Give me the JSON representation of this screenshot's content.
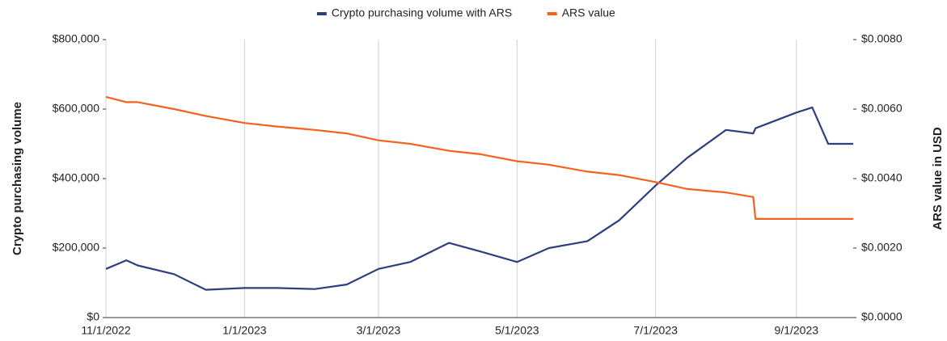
{
  "chart_data": {
    "type": "line",
    "x": [
      "11/1/2022",
      "11/10/2022",
      "11/15/2022",
      "12/1/2022",
      "12/15/2022",
      "1/1/2023",
      "1/15/2023",
      "2/1/2023",
      "2/15/2023",
      "3/1/2023",
      "3/15/2023",
      "4/1/2023",
      "4/15/2023",
      "5/1/2023",
      "5/15/2023",
      "6/1/2023",
      "6/15/2023",
      "7/1/2023",
      "7/15/2023",
      "8/1/2023",
      "8/13/2023",
      "8/14/2023",
      "9/1/2023",
      "9/8/2023",
      "9/15/2023",
      "9/26/2023"
    ],
    "series": [
      {
        "name": "Crypto purchasing volume with ARS",
        "color": "#2e3f7f",
        "values": [
          140000,
          165000,
          150000,
          125000,
          80000,
          85000,
          85000,
          82000,
          95000,
          140000,
          160000,
          215000,
          190000,
          160000,
          200000,
          220000,
          280000,
          380000,
          460000,
          540000,
          530000,
          545000,
          590000,
          605000,
          500000,
          500000
        ]
      },
      {
        "name": "ARS value",
        "color": "#f5621e",
        "axis": "y2",
        "values": [
          0.00635,
          0.0062,
          0.0062,
          0.006,
          0.0058,
          0.0056,
          0.0055,
          0.0054,
          0.0053,
          0.0051,
          0.005,
          0.0048,
          0.0047,
          0.0045,
          0.0044,
          0.0042,
          0.0041,
          0.0039,
          0.0037,
          0.0036,
          0.00347,
          0.00284,
          0.00284,
          0.00284,
          0.00284,
          0.00284
        ]
      }
    ],
    "xlim": [
      "11/1/2022",
      "9/26/2023"
    ],
    "xticks": [
      "11/1/2022",
      "1/1/2023",
      "3/1/2023",
      "5/1/2023",
      "7/1/2023",
      "9/1/2023"
    ],
    "ylabel": "Crypto purchasing volume",
    "y2label": "ARS value in USD",
    "ylim": [
      0,
      800000
    ],
    "yticks": [
      {
        "value": 0,
        "label": "$0"
      },
      {
        "value": 200000,
        "label": "$200,000"
      },
      {
        "value": 400000,
        "label": "$400,000"
      },
      {
        "value": 600000,
        "label": "$600,000"
      },
      {
        "value": 800000,
        "label": "$800,000"
      }
    ],
    "y2lim": [
      0,
      0.008
    ],
    "y2ticks": [
      {
        "value": 0,
        "label": "$0.0000"
      },
      {
        "value": 0.002,
        "label": "$0.0020"
      },
      {
        "value": 0.004,
        "label": "$0.0040"
      },
      {
        "value": 0.006,
        "label": "$0.0060"
      },
      {
        "value": 0.008,
        "label": "$0.0080"
      }
    ],
    "grid": "x",
    "legend": "top"
  }
}
